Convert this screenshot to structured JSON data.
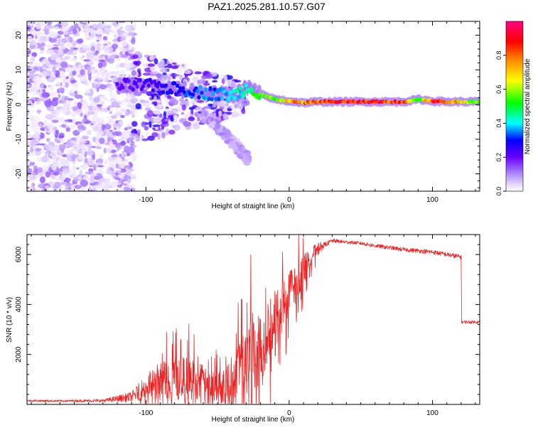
{
  "title": "PAZ1.2025.281.10.57.G07",
  "chart_data": [
    {
      "type": "heatmap",
      "title": "PAZ1.2025.281.10.57.G07",
      "xlabel": "Height of straight line (km)",
      "ylabel": "Frequency (Hz)",
      "xlim": [
        -183,
        133
      ],
      "ylim": [
        -25,
        24
      ],
      "xticks": [
        -100,
        0,
        100
      ],
      "xtick_labels": [
        "-100",
        "0",
        "100"
      ],
      "yticks": [
        20,
        10,
        0,
        -10,
        -20
      ],
      "ytick_labels": [
        "20",
        "10",
        "0",
        "-10",
        "-20"
      ],
      "colorbar": {
        "label": "Normalized spectral amplitude",
        "range": [
          0,
          1
        ],
        "ticks": [
          0.0,
          0.2,
          0.4,
          0.6,
          0.8
        ],
        "tick_labels": [
          "0.0",
          "0.2",
          "0.4",
          "0.6",
          "0.8"
        ],
        "colormap": "rainbow (white/lavender → violet → blue → cyan → green → yellow → red → magenta)"
      },
      "regions": [
        {
          "description": "scattered low-amplitude noise",
          "height_km": [
            -183,
            -108
          ],
          "frequency_hz": [
            -25,
            24
          ],
          "amplitude": [
            0.02,
            0.15
          ]
        },
        {
          "description": "diffuse noise band narrowing toward signal",
          "height_km": [
            -110,
            -30
          ],
          "frequency_hz": [
            -16,
            15
          ],
          "amplitude": [
            0.02,
            0.3
          ]
        },
        {
          "description": "descending secondary track",
          "height_km": [
            -60,
            -28
          ],
          "frequency_hz": [
            -16,
            0
          ],
          "amplitude": [
            0.05,
            0.12
          ]
        }
      ],
      "ridge": {
        "height_km": [
          -120,
          -100,
          -80,
          -60,
          -40,
          -28,
          -20,
          -10,
          0,
          10,
          20,
          40,
          60,
          80,
          90,
          100,
          110,
          120,
          133
        ],
        "frequency_hz": [
          5.5,
          5.5,
          4.5,
          3.5,
          2.5,
          5.0,
          3.0,
          1.5,
          1.0,
          0.5,
          0.8,
          0.8,
          0.8,
          0.8,
          1.5,
          1.0,
          0.8,
          0.8,
          0.8
        ],
        "amplitude": [
          0.2,
          0.25,
          0.3,
          0.35,
          0.4,
          0.45,
          0.55,
          0.6,
          0.75,
          0.8,
          0.85,
          0.9,
          0.9,
          0.88,
          0.5,
          0.9,
          0.85,
          0.7,
          0.6
        ]
      }
    },
    {
      "type": "line",
      "title": "",
      "xlabel": "Height of straight line (km)",
      "ylabel": "SNR (10 * v/v)",
      "xlim": [
        -183,
        133
      ],
      "ylim": [
        0,
        6800
      ],
      "xticks": [
        -100,
        0,
        100
      ],
      "xtick_labels": [
        "-100",
        "0",
        "100"
      ],
      "yticks": [
        2000,
        4000,
        6000
      ],
      "ytick_labels": [
        "2000",
        "4000",
        "6000"
      ],
      "series": [
        {
          "name": "SNR",
          "color": "#ee2222",
          "x": [
            -183,
            -160,
            -130,
            -110,
            -100,
            -90,
            -80,
            -70,
            -60,
            -50,
            -40,
            -30,
            -25,
            -20,
            -15,
            -10,
            -5,
            0,
            5,
            10,
            15,
            20,
            25,
            30,
            40,
            50,
            60,
            80,
            100,
            120,
            120.5,
            133
          ],
          "y": [
            150,
            140,
            150,
            300,
            700,
            950,
            1100,
            1000,
            900,
            650,
            1000,
            2100,
            2600,
            2700,
            2600,
            3400,
            4000,
            4500,
            4900,
            5400,
            5900,
            6300,
            6400,
            6550,
            6500,
            6450,
            6350,
            6200,
            6100,
            5900,
            3300,
            3300
          ],
          "noise_amplitude": [
            40,
            40,
            60,
            200,
            500,
            800,
            900,
            900,
            700,
            600,
            1000,
            1300,
            1500,
            1500,
            1400,
            1300,
            1100,
            900,
            800,
            600,
            400,
            200,
            100,
            80,
            70,
            70,
            80,
            80,
            90,
            100,
            60,
            60
          ]
        }
      ]
    }
  ]
}
